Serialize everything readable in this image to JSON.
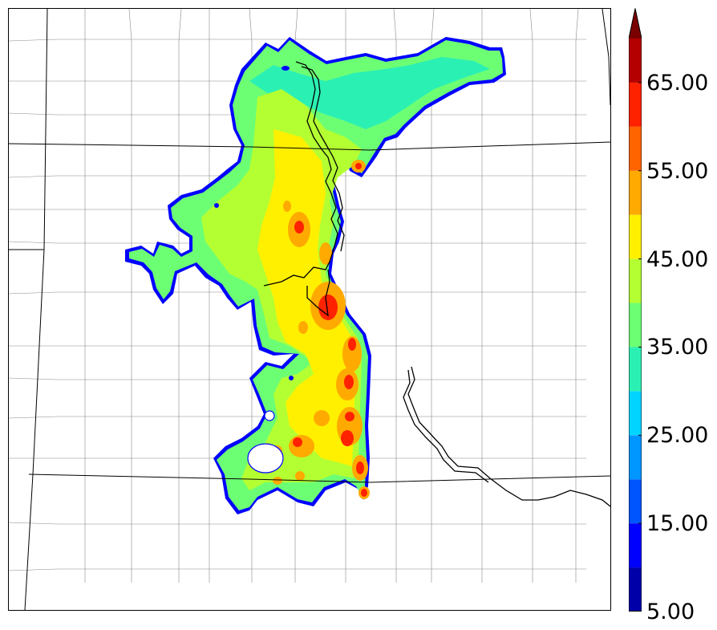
{
  "colorbar": {
    "extend": "max",
    "bins": [
      {
        "from": 5,
        "to": 10,
        "color": "#0000a8"
      },
      {
        "from": 10,
        "to": 15,
        "color": "#0000ff"
      },
      {
        "from": 15,
        "to": 20,
        "color": "#0055ff"
      },
      {
        "from": 20,
        "to": 25,
        "color": "#0096ff"
      },
      {
        "from": 25,
        "to": 30,
        "color": "#00d4ff"
      },
      {
        "from": 30,
        "to": 35,
        "color": "#2bf0b4"
      },
      {
        "from": 35,
        "to": 40,
        "color": "#6cff74"
      },
      {
        "from": 40,
        "to": 45,
        "color": "#b4ff32"
      },
      {
        "from": 45,
        "to": 50,
        "color": "#fff000"
      },
      {
        "from": 50,
        "to": 55,
        "color": "#ffaa00"
      },
      {
        "from": 55,
        "to": 60,
        "color": "#ff6400"
      },
      {
        "from": 60,
        "to": 65,
        "color": "#ff2200"
      },
      {
        "from": 65,
        "to": 70,
        "color": "#b40000"
      },
      {
        "from": 70,
        "to": null,
        "color": "#7a0000"
      }
    ],
    "tick_labels": [
      {
        "value": 5,
        "text": "5.00"
      },
      {
        "value": 15,
        "text": "15.00"
      },
      {
        "value": 25,
        "text": "25.00"
      },
      {
        "value": 35,
        "text": "35.00"
      },
      {
        "value": 45,
        "text": "45.00"
      },
      {
        "value": 55,
        "text": "55.00"
      },
      {
        "value": 65,
        "text": "65.00"
      }
    ]
  },
  "map": {
    "field_colors": {
      "outline": "#0000ff",
      "base": "#6cff74",
      "mid": "#b4ff32",
      "high": "#fff000",
      "cyan": "#2bf0b4",
      "orange": "#ffaa00",
      "red": "#ff2200"
    },
    "boundary_colors": {
      "state": "#000000",
      "county": "#888888"
    }
  }
}
